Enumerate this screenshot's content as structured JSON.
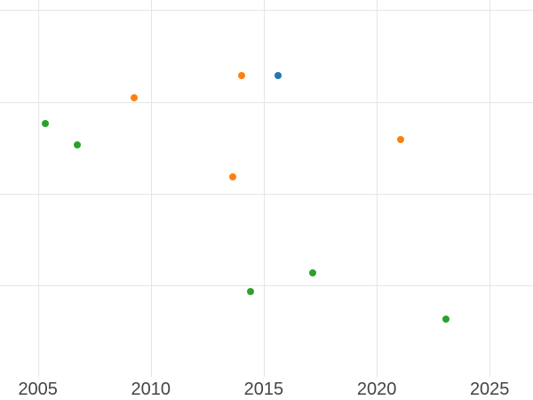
{
  "chart_data": {
    "type": "scatter",
    "title": "",
    "xlabel": "",
    "ylabel": "",
    "x_tick_labels": [
      "2005",
      "2010",
      "2015",
      "2020",
      "2025"
    ],
    "x_tick_values": [
      2005,
      2010,
      2015,
      2020,
      2025
    ],
    "y_tick_labels": [],
    "xlim": [
      2003.32,
      2026.92
    ],
    "ylim": [
      0,
      4.11
    ],
    "y_gridline_values": [
      1,
      2,
      3,
      4
    ],
    "grid": true,
    "legend_position": "none",
    "marker_size_px": 8,
    "colors": {
      "background": "#ffffff",
      "grid": "#e5e5e5",
      "tick_label": "#444444",
      "green": "#2ca02c",
      "orange": "#ff7f0e",
      "blue": "#1f77b4"
    },
    "series": [
      {
        "name": "green-series",
        "color": "#2ca02c",
        "points": [
          {
            "x": 2005.33,
            "y": 2.76
          },
          {
            "x": 2006.73,
            "y": 2.53
          },
          {
            "x": 2014.4,
            "y": 0.93
          },
          {
            "x": 2017.15,
            "y": 1.13
          },
          {
            "x": 2023.07,
            "y": 0.63
          }
        ]
      },
      {
        "name": "orange-series",
        "color": "#ff7f0e",
        "points": [
          {
            "x": 2009.25,
            "y": 3.04
          },
          {
            "x": 2013.61,
            "y": 2.18
          },
          {
            "x": 2014.02,
            "y": 3.29
          },
          {
            "x": 2021.04,
            "y": 2.59
          }
        ]
      },
      {
        "name": "blue-series",
        "color": "#1f77b4",
        "points": [
          {
            "x": 2015.64,
            "y": 3.29
          }
        ]
      }
    ]
  }
}
